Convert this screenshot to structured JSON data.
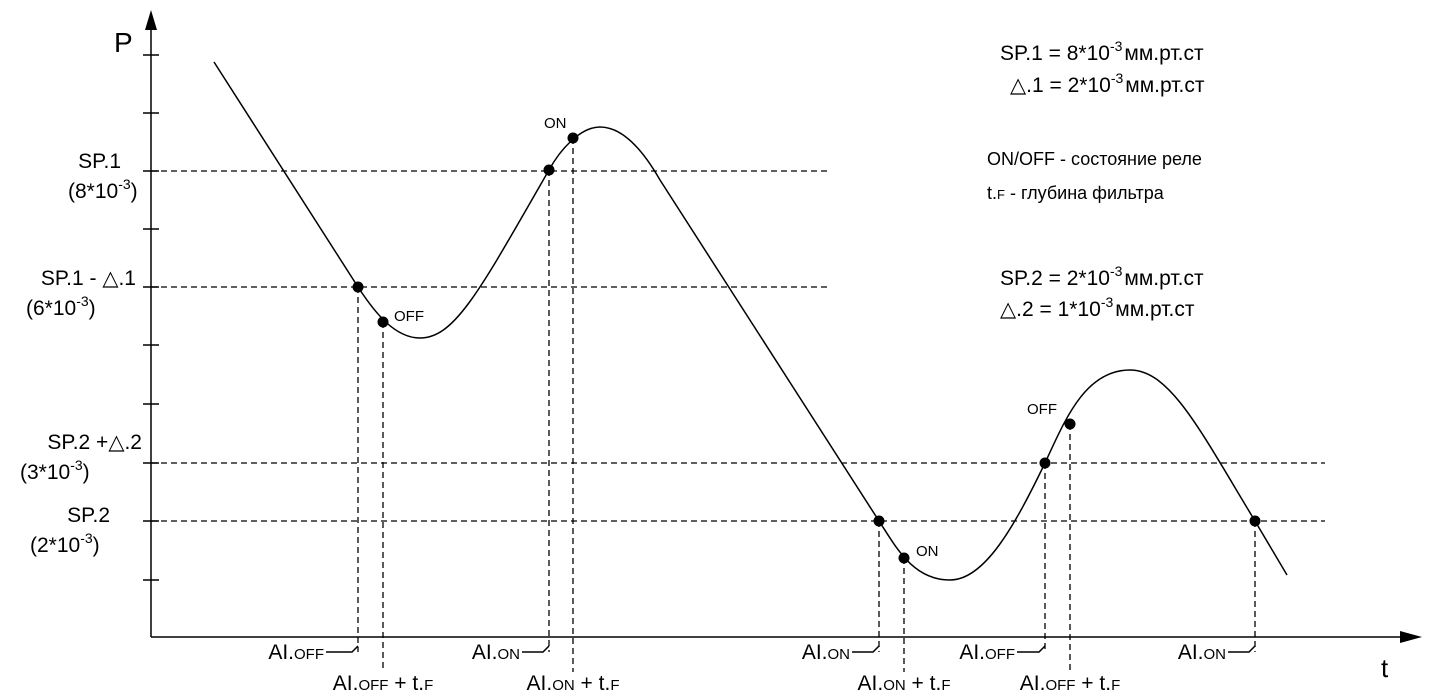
{
  "axes": {
    "y_label": "P",
    "x_label": "t"
  },
  "levels": [
    {
      "id": "sp1",
      "name": "SP.1",
      "value": "(8*10",
      "exp": "-3",
      "close": ")"
    },
    {
      "id": "sp1d",
      "name": "SP.1 - △.1",
      "value": "(6*10",
      "exp": "-3",
      "close": ")"
    },
    {
      "id": "sp2d",
      "name": "SP.2 +△.2",
      "value": "(3*10",
      "exp": "-3",
      "close": ")"
    },
    {
      "id": "sp2",
      "name": "SP.2",
      "value": "(2*10",
      "exp": "-3",
      "close": ")"
    }
  ],
  "legend": {
    "sp1": {
      "pre": "SP.1 = 8*10",
      "exp": "-3",
      "unit": "мм.рт.ст"
    },
    "d1": {
      "pre": "△.1 = 2*10",
      "exp": "-3",
      "unit": "мм.рт.ст"
    },
    "onoff": "ON/OFF - состояние реле",
    "tf": {
      "pre": "t.",
      "small": "F",
      "post": " - глубина фильтра"
    },
    "sp2": {
      "pre": "SP.2 = 2*10",
      "exp": "-3",
      "unit": "мм.рт.ст"
    },
    "d2": {
      "pre": "△.2 = 1*10",
      "exp": "-3",
      "unit": "мм.рт.ст"
    }
  },
  "point_labels": {
    "off": "OFF",
    "on": "ON"
  },
  "x_events": {
    "al": "AI.",
    "off": "OFF",
    "on": "ON",
    "plus_tf": " + t.",
    "f": "F"
  }
}
